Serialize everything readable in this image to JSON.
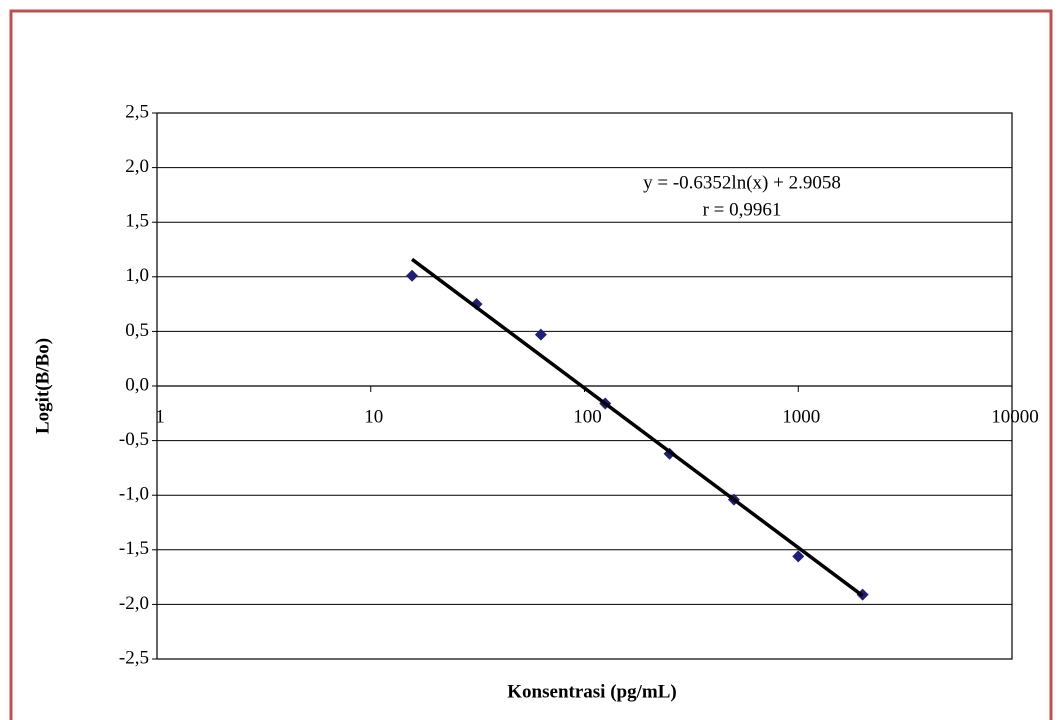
{
  "chart_data": {
    "type": "scatter",
    "x_label": "Konsentrasi (pg/mL)",
    "y_label": "Logit(B/Bo)",
    "log_x": true,
    "grid": true,
    "xlim": [
      1,
      10000
    ],
    "xticks": [
      1,
      10,
      100,
      1000,
      10000
    ],
    "ylim": [
      -2.5,
      2.5
    ],
    "yticks": [
      {
        "value": -2.5,
        "label": "-2,5"
      },
      {
        "value": -2.0,
        "label": "-2,0"
      },
      {
        "value": -1.5,
        "label": "-1,5"
      },
      {
        "value": -1.0,
        "label": "-1,0"
      },
      {
        "value": -0.5,
        "label": "-0,5"
      },
      {
        "value": 0,
        "label": "0,0"
      },
      {
        "value": 0.5,
        "label": "0,5"
      },
      {
        "value": 1.0,
        "label": "1,0"
      },
      {
        "value": 1.5,
        "label": "1,5"
      },
      {
        "value": 2.0,
        "label": "2,0"
      },
      {
        "value": 2.5,
        "label": "2,5"
      }
    ],
    "series": [
      {
        "color": "#1f1f7a",
        "x": [
          15.6,
          31.25,
          62.5,
          125,
          250,
          500,
          1000,
          2000
        ],
        "values": [
          1.01,
          0.75,
          0.47,
          -0.16,
          -0.62,
          -1.04,
          -1.56,
          -1.91
        ]
      }
    ],
    "trendline": {
      "color": "#000000",
      "x": [
        15.6,
        2000
      ],
      "values": [
        1.16,
        -1.92
      ]
    },
    "annotations": [
      "y = -0.6352ln(x) + 2.9058",
      "r = 0,9961"
    ]
  }
}
